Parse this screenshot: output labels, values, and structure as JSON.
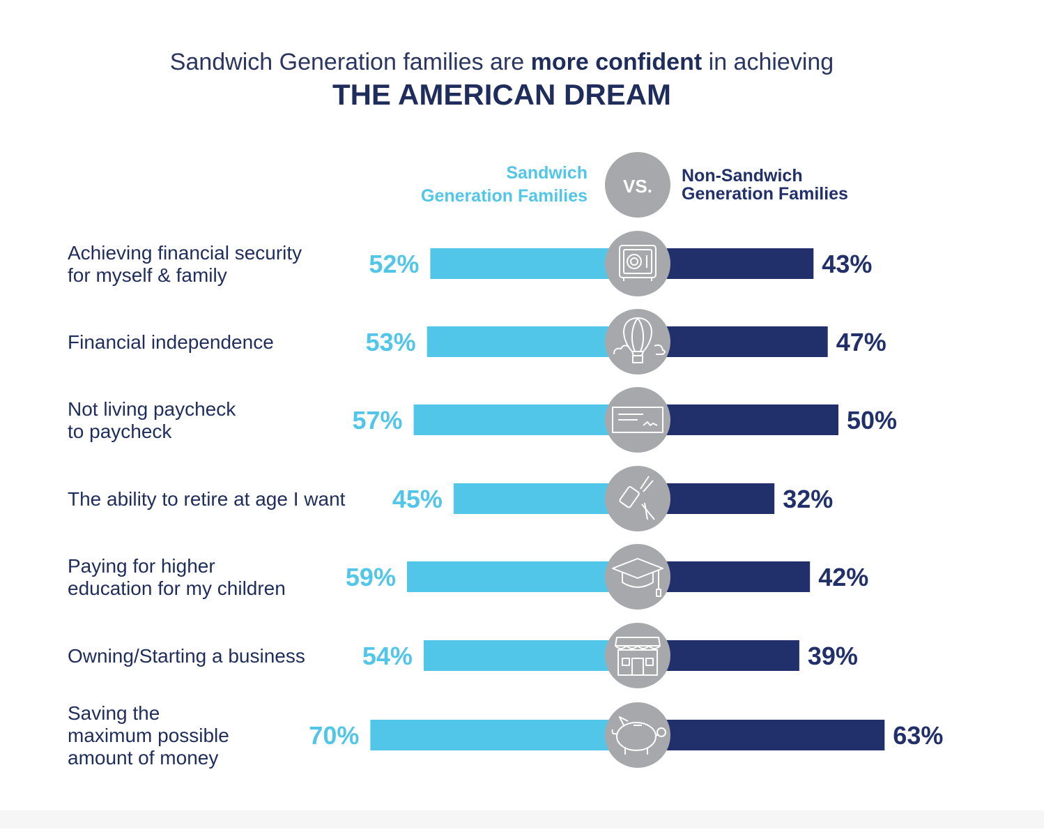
{
  "title": {
    "line1_pre": "Sandwich Generation families are ",
    "line1_bold": "more confident",
    "line1_post": " in achieving",
    "line2": "THE AMERICAN DREAM"
  },
  "vs_label": "VS.",
  "colors": {
    "sandwich": "#52c6e8",
    "non_sandwich": "#21306a",
    "circle": "#a7a8ab",
    "text": "#1f2d5c"
  },
  "chart_data": {
    "type": "bar",
    "orientation": "horizontal-diverging",
    "unit": "%",
    "series": [
      {
        "name": "Sandwich Generation Families",
        "name_lines": [
          "Sandwich",
          "Generation Families"
        ],
        "values": [
          52,
          53,
          57,
          45,
          59,
          54,
          70
        ]
      },
      {
        "name": "Non-Sandwich Generation Families",
        "name_lines": [
          "Non-Sandwich",
          "Generation Families"
        ],
        "values": [
          43,
          47,
          50,
          32,
          42,
          39,
          63
        ]
      }
    ],
    "categories": [
      {
        "lines": [
          "Achieving financial security",
          "for myself & family"
        ],
        "icon": "safe-icon"
      },
      {
        "lines": [
          "Financial independence"
        ],
        "icon": "hot-air-balloon-icon"
      },
      {
        "lines": [
          "Not living paycheck",
          "to paycheck"
        ],
        "icon": "check-icon"
      },
      {
        "lines": [
          "The ability to retire at age I want"
        ],
        "icon": "golf-bag-icon"
      },
      {
        "lines": [
          "Paying for higher",
          "education for my children"
        ],
        "icon": "graduation-cap-icon"
      },
      {
        "lines": [
          "Owning/Starting a business"
        ],
        "icon": "storefront-icon"
      },
      {
        "lines": [
          "Saving the",
          "maximum possible",
          "amount of money"
        ],
        "icon": "piggy-bank-icon"
      }
    ],
    "data_labels": {
      "sandwich": [
        "52%",
        "53%",
        "57%",
        "45%",
        "59%",
        "54%",
        "70%"
      ],
      "non_sandwich": [
        "43%",
        "47%",
        "50%",
        "32%",
        "42%",
        "39%",
        "63%"
      ]
    }
  }
}
